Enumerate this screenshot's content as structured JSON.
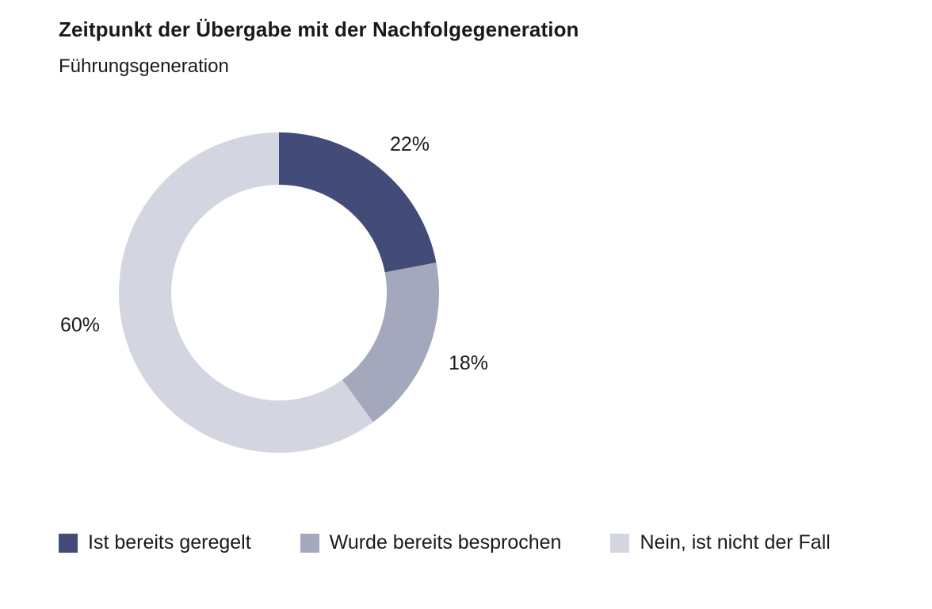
{
  "chart_data": {
    "type": "pie",
    "title": "Zeitpunkt der Übergabe mit der Nachfolgegeneration",
    "subtitle": "Führungsgeneration",
    "categories": [
      "Ist bereits geregelt",
      "Wurde bereits besprochen",
      "Nein, ist nicht der Fall"
    ],
    "values": [
      22,
      18,
      60
    ],
    "value_labels": [
      "22%",
      "18%",
      "60%"
    ],
    "colors": [
      "#434c78",
      "#a4a8bc",
      "#d3d5e0"
    ],
    "donut": true,
    "legend": "bottom"
  }
}
